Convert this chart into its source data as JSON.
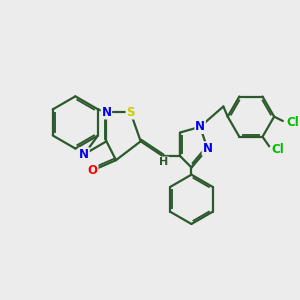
{
  "background_color": "#ececec",
  "bond_color": "#2d5a2d",
  "bond_width": 1.6,
  "atom_colors": {
    "N": "#0000ee",
    "S": "#cccc00",
    "O": "#ff0000",
    "Cl": "#00bb00",
    "H": "#2d5a2d",
    "C": "#2d5a2d"
  },
  "font_size": 8.5,
  "figsize": [
    3.0,
    3.0
  ],
  "dpi": 100
}
